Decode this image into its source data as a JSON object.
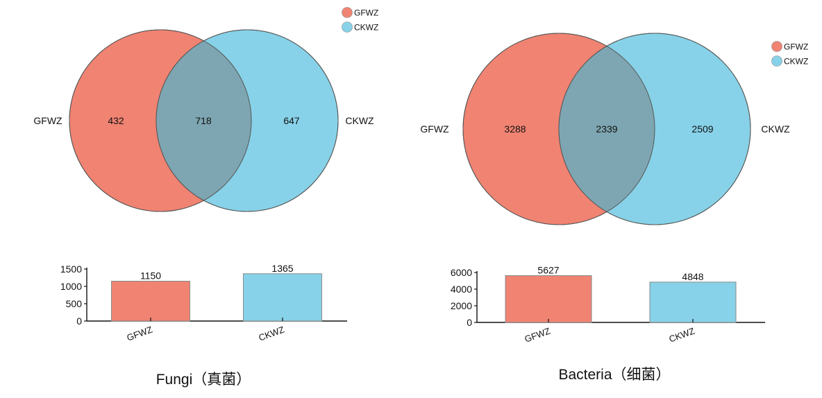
{
  "chart_data": [
    {
      "type": "venn",
      "sets": [
        {
          "name": "GFWZ",
          "color": "#f08372"
        },
        {
          "name": "CKWZ",
          "color": "#87d2e8"
        }
      ],
      "regions": {
        "only_a": 432,
        "intersection": 718,
        "only_b": 647
      },
      "legend": [
        "GFWZ",
        "CKWZ"
      ],
      "legend_position": "top-right"
    },
    {
      "type": "bar",
      "categories": [
        "GFWZ",
        "CKWZ"
      ],
      "values": [
        1150,
        1365
      ],
      "colors": [
        "#f08372",
        "#87d2e8"
      ],
      "ylim": [
        0,
        1500
      ],
      "yticks": [
        0,
        500,
        1000,
        1500
      ],
      "title": "Fungi（真菌）"
    },
    {
      "type": "venn",
      "sets": [
        {
          "name": "GFWZ",
          "color": "#f08372"
        },
        {
          "name": "CKWZ",
          "color": "#87d2e8"
        }
      ],
      "regions": {
        "only_a": 3288,
        "intersection": 2339,
        "only_b": 2509
      },
      "legend": [
        "GFWZ",
        "CKWZ"
      ],
      "legend_position": "top-right"
    },
    {
      "type": "bar",
      "categories": [
        "GFWZ",
        "CKWZ"
      ],
      "values": [
        5627,
        4848
      ],
      "colors": [
        "#f08372",
        "#87d2e8"
      ],
      "ylim": [
        0,
        6000
      ],
      "yticks": [
        0,
        2000,
        4000,
        6000
      ],
      "title": "Bacteria（细菌）"
    }
  ]
}
